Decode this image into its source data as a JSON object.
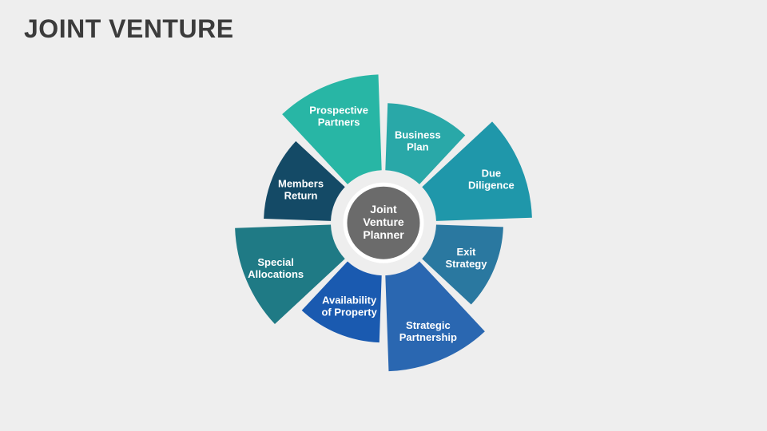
{
  "title": "JOINT VENTURE",
  "center": {
    "line1": "Joint",
    "line2": "Venture",
    "line3": "Planner"
  },
  "diagram": {
    "type": "radial-segments",
    "background_color": "#eeeeee",
    "center_circle": {
      "fill": "#6b6b6b",
      "stroke": "#ffffff",
      "stroke_width": 5,
      "radius": 48
    },
    "gap_deg": 4,
    "segment_count": 8,
    "r_inner_short": 66,
    "r_outer_short": 150,
    "r_inner_long": 66,
    "r_outer_long": 186,
    "label_r_short": 112,
    "label_r_long": 146,
    "segments": [
      {
        "line1": "Prospective",
        "line2": "Partners",
        "color": "#28b6a5",
        "long": true
      },
      {
        "line1": "Business",
        "line2": "Plan",
        "color": "#29a8a8",
        "long": false
      },
      {
        "line1": "Due",
        "line2": "Diligence",
        "color": "#1f97aa",
        "long": true
      },
      {
        "line1": "Exit",
        "line2": "Strategy",
        "color": "#2a78a0",
        "long": false
      },
      {
        "line1": "Strategic",
        "line2": "Partnership",
        "color": "#2a67b1",
        "long": true
      },
      {
        "line1": "Availability",
        "line2": "of Property",
        "color": "#1a5ab0",
        "long": false
      },
      {
        "line1": "Special",
        "line2": "Allocations",
        "color": "#1f7a85",
        "long": true
      },
      {
        "line1": "Members",
        "line2": "Return",
        "color": "#144a66",
        "long": false
      }
    ]
  }
}
